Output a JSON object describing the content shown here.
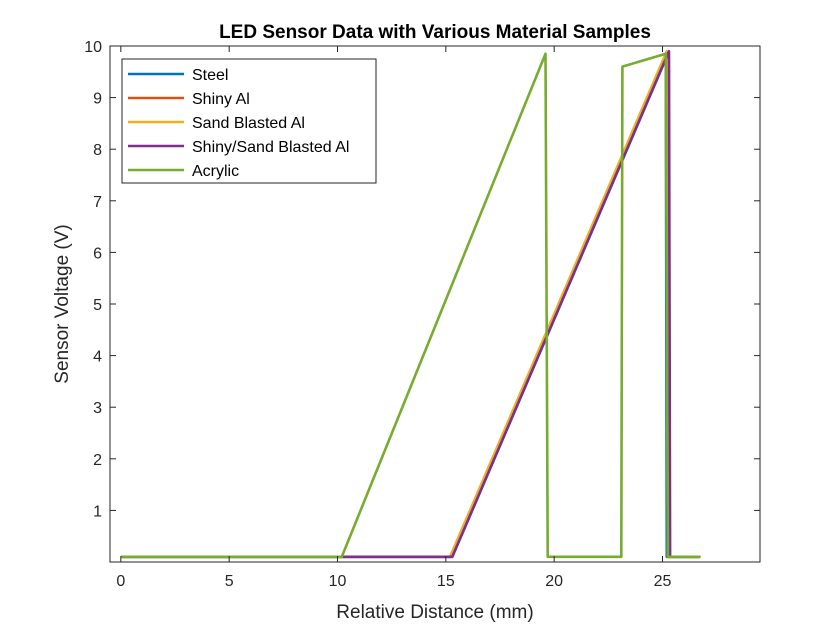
{
  "chart_data": {
    "type": "line",
    "title": "LED Sensor Data with Various Material Samples",
    "xlabel": "Relative Distance (mm)",
    "ylabel": "Sensor Voltage (V)",
    "xlim": [
      -0.5,
      29.5
    ],
    "ylim": [
      0.0,
      10.0
    ],
    "x_ticks": [
      0,
      5,
      10,
      15,
      20,
      25
    ],
    "y_ticks": [
      1,
      2,
      3,
      4,
      5,
      6,
      7,
      8,
      9,
      10
    ],
    "grid": false,
    "legend_position": "top-left",
    "series": [
      {
        "name": "Steel",
        "color": "#0072BD",
        "x": [
          0.05,
          15.3,
          25.15,
          25.2,
          26.7
        ],
        "y": [
          0.1,
          0.1,
          9.75,
          0.1,
          0.1
        ]
      },
      {
        "name": "Shiny Al",
        "color": "#D95319",
        "x": [
          0.05,
          15.2,
          25.2,
          25.25,
          26.7
        ],
        "y": [
          0.1,
          0.1,
          9.85,
          0.1,
          0.1
        ]
      },
      {
        "name": "Sand Blasted Al",
        "color": "#EDB120",
        "x": [
          0.05,
          15.2,
          25.2,
          25.25,
          26.7
        ],
        "y": [
          0.1,
          0.1,
          9.9,
          0.1,
          0.1
        ]
      },
      {
        "name": "Shiny/Sand Blasted Al",
        "color": "#7E2F8E",
        "x": [
          0.05,
          15.3,
          25.3,
          25.35,
          26.7
        ],
        "y": [
          0.1,
          0.1,
          9.9,
          0.1,
          0.1
        ]
      },
      {
        "name": "Acrylic",
        "color": "#77AC30",
        "x": [
          0.05,
          10.2,
          19.6,
          19.7,
          23.1,
          23.15,
          25.15,
          25.25,
          26.7
        ],
        "y": [
          0.1,
          0.1,
          9.85,
          0.1,
          0.1,
          9.6,
          9.85,
          0.1,
          0.1
        ]
      }
    ]
  }
}
